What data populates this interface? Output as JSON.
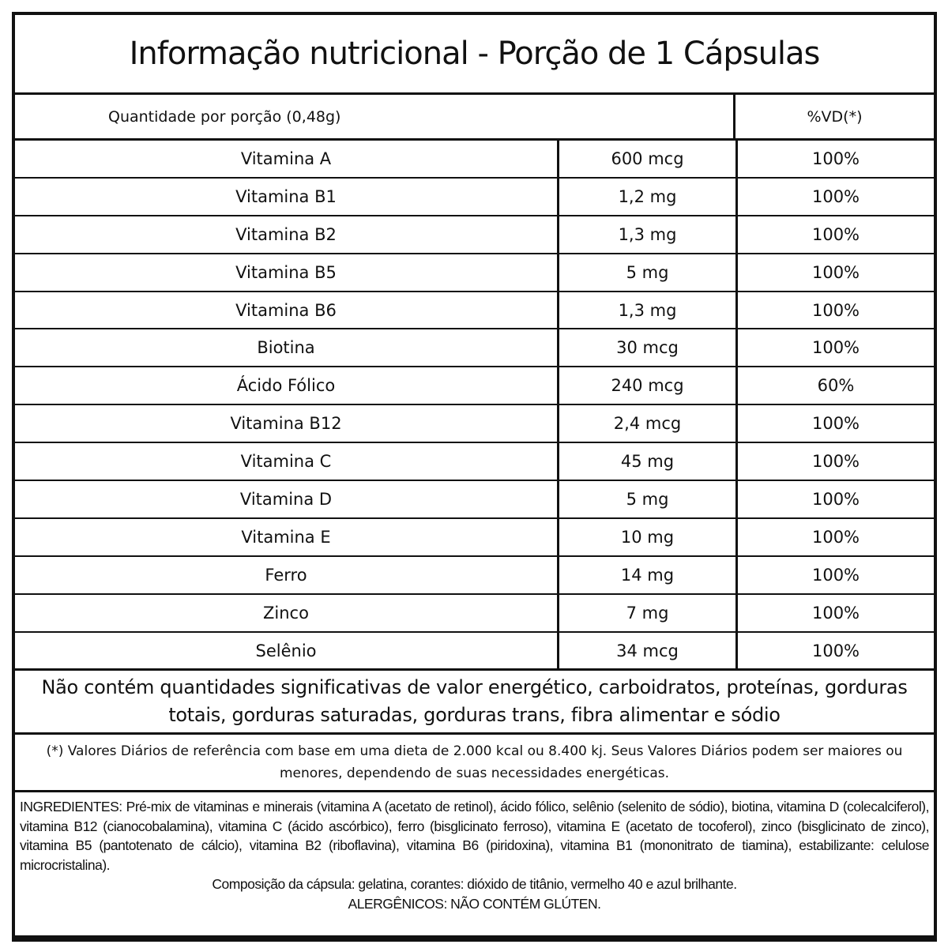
{
  "title": "Informação nutricional - Porção de 1 Cápsulas",
  "header": {
    "serving": "Quantidade por porção (0,48g)",
    "dv": "%VD(*)"
  },
  "rows": [
    {
      "nutrient": "Vitamina A",
      "amount": "600 mcg",
      "dv": "100%"
    },
    {
      "nutrient": "Vitamina B1",
      "amount": "1,2 mg",
      "dv": "100%"
    },
    {
      "nutrient": "Vitamina B2",
      "amount": "1,3 mg",
      "dv": "100%"
    },
    {
      "nutrient": "Vitamina B5",
      "amount": "5 mg",
      "dv": "100%"
    },
    {
      "nutrient": "Vitamina B6",
      "amount": "1,3 mg",
      "dv": "100%"
    },
    {
      "nutrient": "Biotina",
      "amount": "30 mcg",
      "dv": "100%"
    },
    {
      "nutrient": "Ácido Fólico",
      "amount": "240 mcg",
      "dv": "60%"
    },
    {
      "nutrient": "Vitamina B12",
      "amount": "2,4 mcg",
      "dv": "100%"
    },
    {
      "nutrient": "Vitamina C",
      "amount": "45 mg",
      "dv": "100%"
    },
    {
      "nutrient": "Vitamina D",
      "amount": "5 mg",
      "dv": "100%"
    },
    {
      "nutrient": "Vitamina E",
      "amount": "10 mg",
      "dv": "100%"
    },
    {
      "nutrient": "Ferro",
      "amount": "14 mg",
      "dv": "100%"
    },
    {
      "nutrient": "Zinco",
      "amount": "7 mg",
      "dv": "100%"
    },
    {
      "nutrient": "Selênio",
      "amount": "34 mcg",
      "dv": "100%"
    }
  ],
  "note": "Não contém quantidades significativas de valor energético, carboidratos, proteínas, gorduras totais, gorduras saturadas, gorduras trans, fibra alimentar e sódio",
  "reference": "(*) Valores Diários de referência com base em uma dieta de 2.000 kcal ou 8.400 kj. Seus Valores Diários podem ser maiores ou menores, dependendo de suas necessidades energéticas.",
  "ingredients": "INGREDIENTES: Pré-mix de vitaminas e minerais (vitamina A (acetato de retinol), ácido fólico, selênio (selenito de sódio), biotina, vitamina D (colecalciferol), vitamina B12 (cianocobalamina), vitamina C (ácido ascórbico), ferro (bisglicinato ferroso), vitamina E (acetato de tocoferol), zinco (bisglicinato de zinco), vitamina B5 (pantotenato de cálcio), vitamina B2 (riboflavina), vitamina B6 (piridoxina), vitamina B1 (mononitrato de tiamina), estabilizante: celulose microcristalina).",
  "capsule": "Composição da cápsula: gelatina, corantes: dióxido de titânio, vermelho 40 e azul brilhante.",
  "allergens": "ALERGÊNICOS: NÃO CONTÉM GLÚTEN."
}
